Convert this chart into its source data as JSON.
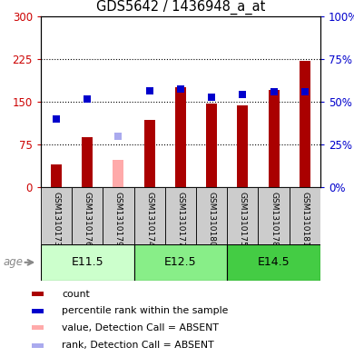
{
  "title": "GDS5642 / 1436948_a_at",
  "samples": [
    "GSM1310173",
    "GSM1310176",
    "GSM1310179",
    "GSM1310174",
    "GSM1310177",
    "GSM1310180",
    "GSM1310175",
    "GSM1310178",
    "GSM1310181"
  ],
  "count_values": [
    40,
    88,
    null,
    118,
    175,
    147,
    143,
    170,
    222
  ],
  "count_absent": [
    null,
    null,
    48,
    null,
    null,
    null,
    null,
    null,
    null
  ],
  "rank_values_pct": [
    40.0,
    51.5,
    null,
    56.5,
    57.3,
    52.7,
    54.0,
    56.0,
    56.0
  ],
  "rank_absent_pct": [
    null,
    null,
    30.0,
    null,
    null,
    null,
    null,
    null,
    null
  ],
  "groups": [
    {
      "label": "E11.5",
      "start": 0,
      "end": 3,
      "color": "#ccffcc"
    },
    {
      "label": "E12.5",
      "start": 3,
      "end": 6,
      "color": "#88ee88"
    },
    {
      "label": "E14.5",
      "start": 6,
      "end": 9,
      "color": "#44cc44"
    }
  ],
  "ylim_left": [
    0,
    300
  ],
  "ylim_right": [
    0,
    100
  ],
  "yticks_left": [
    0,
    75,
    150,
    225,
    300
  ],
  "yticks_right": [
    0,
    25,
    50,
    75,
    100
  ],
  "yticklabels_left": [
    "0",
    "75",
    "150",
    "225",
    "300"
  ],
  "yticklabels_right": [
    "0%",
    "25%",
    "50%",
    "75%",
    "100%"
  ],
  "bar_color_present": "#aa0000",
  "bar_color_absent": "#ffaaaa",
  "dot_color_present": "#0000cc",
  "dot_color_absent": "#aaaaee",
  "age_label": "age",
  "legend": [
    {
      "color": "#aa0000",
      "label": "count"
    },
    {
      "color": "#0000cc",
      "label": "percentile rank within the sample"
    },
    {
      "color": "#ffaaaa",
      "label": "value, Detection Call = ABSENT"
    },
    {
      "color": "#aaaaee",
      "label": "rank, Detection Call = ABSENT"
    }
  ],
  "right_axis_color": "#0000cc",
  "left_axis_color": "#cc0000",
  "sample_label_bg": "#cccccc",
  "bar_width": 0.35,
  "dot_size": 28
}
